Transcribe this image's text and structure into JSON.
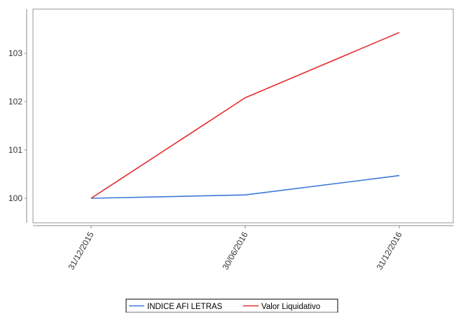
{
  "chart_data": {
    "type": "line",
    "x": [
      "31/12/2015",
      "30/06/2016",
      "31/12/2016"
    ],
    "series": [
      {
        "name": "INDICE AFI LETRAS",
        "color": "#3c78d8",
        "values": [
          100.0,
          100.07,
          100.47
        ]
      },
      {
        "name": "Valor Liquidativo",
        "color": "#e8292b",
        "values": [
          100.0,
          102.08,
          103.43
        ]
      }
    ],
    "yticks": [
      100,
      101,
      102,
      103
    ],
    "ylim": [
      99.5,
      103.9
    ],
    "grid": false,
    "legend_position": "bottom-center"
  }
}
